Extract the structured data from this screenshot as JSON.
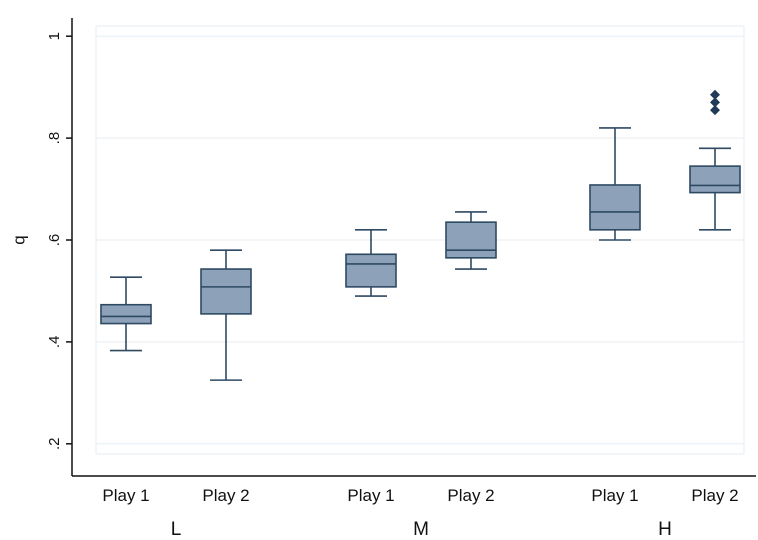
{
  "chart_data": {
    "type": "box",
    "ylabel": "q",
    "ylim": [
      0.18,
      1.02
    ],
    "y_ticks": [
      0.2,
      0.4,
      0.6,
      0.8,
      1
    ],
    "y_tick_labels": [
      ".2",
      ".4",
      ".6",
      ".8",
      "1"
    ],
    "grid": true,
    "colors": {
      "box_fill": "#8da1b8",
      "box_stroke": "#2e4a63",
      "outlier": "#1f3b57",
      "grid": "#e6eef2"
    },
    "groups": [
      {
        "label": "L",
        "boxes": [
          {
            "label": "Play 1",
            "whisker_low": 0.383,
            "q1": 0.436,
            "median": 0.45,
            "q3": 0.473,
            "whisker_high": 0.527,
            "outliers": []
          },
          {
            "label": "Play 2",
            "whisker_low": 0.325,
            "q1": 0.455,
            "median": 0.508,
            "q3": 0.543,
            "whisker_high": 0.58,
            "outliers": []
          }
        ]
      },
      {
        "label": "M",
        "boxes": [
          {
            "label": "Play 1",
            "whisker_low": 0.49,
            "q1": 0.508,
            "median": 0.553,
            "q3": 0.572,
            "whisker_high": 0.62,
            "outliers": []
          },
          {
            "label": "Play 2",
            "whisker_low": 0.543,
            "q1": 0.565,
            "median": 0.58,
            "q3": 0.635,
            "whisker_high": 0.655,
            "outliers": []
          }
        ]
      },
      {
        "label": "H",
        "boxes": [
          {
            "label": "Play 1",
            "whisker_low": 0.6,
            "q1": 0.62,
            "median": 0.655,
            "q3": 0.708,
            "whisker_high": 0.82,
            "outliers": []
          },
          {
            "label": "Play 2",
            "whisker_low": 0.62,
            "q1": 0.693,
            "median": 0.707,
            "q3": 0.745,
            "whisker_high": 0.78,
            "outliers": [
              0.855,
              0.87,
              0.885
            ]
          }
        ]
      }
    ]
  }
}
